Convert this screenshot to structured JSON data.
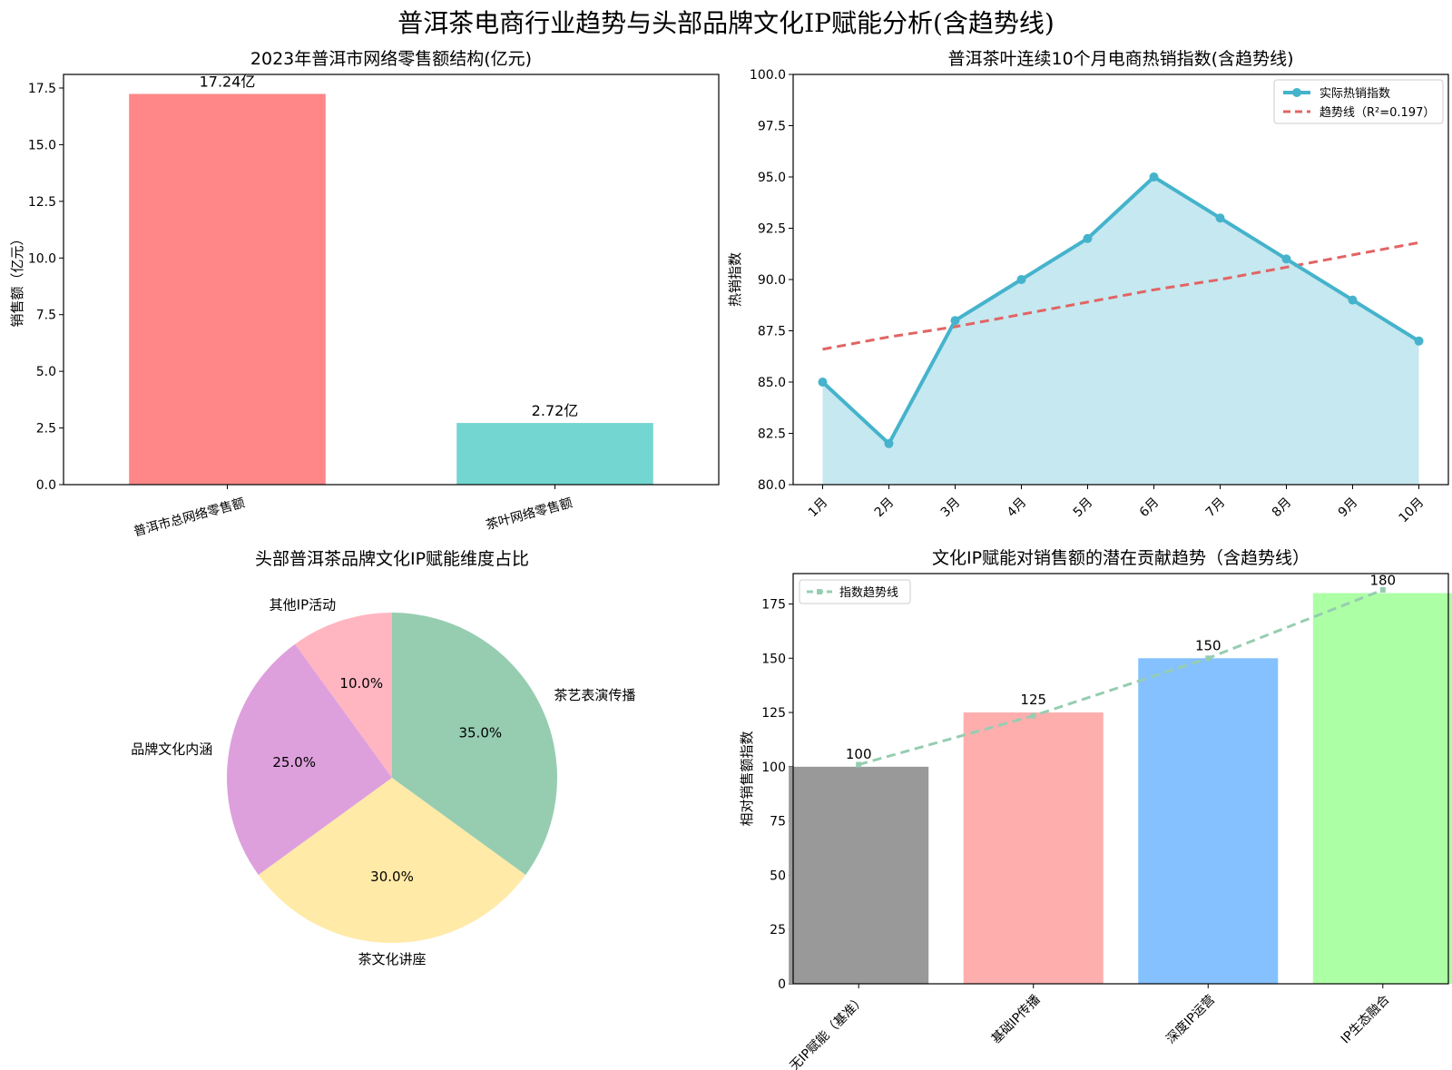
{
  "suptitle": "普洱茶电商行业趋势与头部品牌文化IP赋能分析(含趋势线)",
  "chart_data": [
    {
      "type": "bar",
      "title": "2023年普洱市网络零售额结构(亿元)",
      "xlabel": "",
      "ylabel": "销售额（亿元）",
      "categories": [
        "普洱市总网络零售额",
        "茶叶网络零售额"
      ],
      "values": [
        17.24,
        2.72
      ],
      "value_labels": [
        "17.24亿",
        "2.72亿"
      ],
      "colors": [
        "#ff8787",
        "#74d6d0"
      ],
      "ylim": [
        0,
        18.1
      ],
      "yticks": [
        0,
        2.5,
        5,
        7.5,
        10,
        12.5,
        15,
        17.5
      ],
      "ytick_labels": [
        "0.0",
        "2.5",
        "5.0",
        "7.5",
        "10.0",
        "12.5",
        "15.0",
        "17.5"
      ]
    },
    {
      "type": "line",
      "title": "普洱茶叶连续10个月电商热销指数(含趋势线)",
      "xlabel": "",
      "ylabel": "热销指数",
      "categories": [
        "1月",
        "2月",
        "3月",
        "4月",
        "5月",
        "6月",
        "7月",
        "8月",
        "9月",
        "10月"
      ],
      "series": [
        {
          "name": "实际热销指数",
          "values": [
            85,
            82,
            88,
            90,
            92,
            95,
            93,
            91,
            89,
            87
          ],
          "color": "#45b3cc",
          "fill": "#c6e8f0"
        },
        {
          "name": "趋势线（R²=0.197）",
          "values": [
            86.6,
            87.2,
            87.7,
            88.3,
            88.9,
            89.5,
            90.0,
            90.6,
            91.2,
            91.8
          ],
          "color": "#e26464",
          "style": "dashed"
        }
      ],
      "ylim": [
        80,
        100
      ],
      "yticks": [
        80,
        82.5,
        85,
        87.5,
        90,
        92.5,
        95,
        97.5,
        100
      ],
      "ytick_labels": [
        "80.0",
        "82.5",
        "85.0",
        "87.5",
        "90.0",
        "92.5",
        "95.0",
        "97.5",
        "100.0"
      ],
      "legend": "top-right"
    },
    {
      "type": "pie",
      "title": "头部普洱茶品牌文化IP赋能维度占比",
      "labels": [
        "其他IP活动",
        "品牌文化内涵",
        "茶文化讲座",
        "茶艺表演传播"
      ],
      "values": [
        10,
        25,
        30,
        35
      ],
      "pct_labels": [
        "10.0%",
        "25.0%",
        "30.0%",
        "35.0%"
      ],
      "colors": [
        "#ffb6c1",
        "#dda0dd",
        "#ffeaa7",
        "#96cdb1"
      ]
    },
    {
      "type": "bar",
      "title": "文化IP赋能对销售额的潜在贡献趋势（含趋势线）",
      "xlabel": "",
      "ylabel": "相对销售额指数",
      "categories": [
        "无IP赋能（基准）",
        "基础IP传播",
        "深度IP运营",
        "IP生态融合"
      ],
      "values": [
        100,
        125,
        150,
        180
      ],
      "value_labels": [
        "100",
        "125",
        "150",
        "180"
      ],
      "colors": [
        "#999999",
        "#ffaeae",
        "#85c1ff",
        "#adffa5"
      ],
      "trend": {
        "name": "指数趋势线",
        "values": [
          101,
          123.5,
          150,
          181.5
        ],
        "color": "#96cdb1"
      },
      "ylim": [
        0,
        189
      ],
      "yticks": [
        0,
        25,
        50,
        75,
        100,
        125,
        150,
        175
      ],
      "ytick_labels": [
        "0",
        "25",
        "50",
        "75",
        "100",
        "125",
        "150",
        "175"
      ],
      "legend": "top-left"
    }
  ]
}
